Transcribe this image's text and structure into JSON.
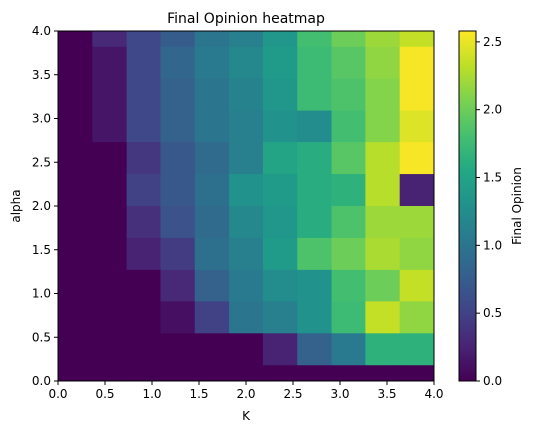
{
  "chart_data": {
    "type": "heatmap",
    "title": "Final Opinion heatmap",
    "xlabel": "K",
    "ylabel": "alpha",
    "colorbar_label": "Final Opinion",
    "colormap": "viridis",
    "xlim": [
      0.0,
      4.0
    ],
    "ylim": [
      0.0,
      4.0
    ],
    "clim": [
      0.0,
      2.58
    ],
    "xticks": [
      "0.0",
      "0.5",
      "1.0",
      "1.5",
      "2.0",
      "2.5",
      "3.0",
      "3.5",
      "4.0"
    ],
    "yticks": [
      "0.0",
      "0.5",
      "1.0",
      "1.5",
      "2.0",
      "2.5",
      "3.0",
      "3.5",
      "4.0"
    ],
    "colorbar_ticks": [
      "0.0",
      "0.5",
      "1.0",
      "1.5",
      "2.0",
      "2.5"
    ],
    "x_centers": [
      0.18,
      0.55,
      0.91,
      1.27,
      1.64,
      2.0,
      2.36,
      2.73,
      3.09,
      3.45,
      3.82
    ],
    "y_centers": [
      4.0,
      3.64,
      3.27,
      2.91,
      2.55,
      2.18,
      1.82,
      1.45,
      1.09,
      0.73,
      0.36,
      0.0
    ],
    "values": [
      [
        0.0,
        0.3,
        0.55,
        0.75,
        1.0,
        1.1,
        1.35,
        1.8,
        2.0,
        2.2,
        2.35
      ],
      [
        0.0,
        0.15,
        0.55,
        0.85,
        1.05,
        1.2,
        1.4,
        1.75,
        1.9,
        2.15,
        2.55
      ],
      [
        0.0,
        0.15,
        0.55,
        0.8,
        1.0,
        1.15,
        1.35,
        1.75,
        1.85,
        2.1,
        2.55
      ],
      [
        0.0,
        0.15,
        0.55,
        0.8,
        1.0,
        1.1,
        1.3,
        1.25,
        1.8,
        2.1,
        2.45
      ],
      [
        0.0,
        0.0,
        0.4,
        0.7,
        0.9,
        1.1,
        1.5,
        1.6,
        1.9,
        2.3,
        2.55
      ],
      [
        0.0,
        0.0,
        0.5,
        0.7,
        0.95,
        1.3,
        1.4,
        1.6,
        1.65,
        2.3,
        0.25
      ],
      [
        0.0,
        0.0,
        0.35,
        0.65,
        0.9,
        1.2,
        1.35,
        1.6,
        1.85,
        2.2,
        2.2
      ],
      [
        0.0,
        0.0,
        0.25,
        0.45,
        0.95,
        1.1,
        1.4,
        1.85,
        2.0,
        2.25,
        2.15
      ],
      [
        0.0,
        0.0,
        0.0,
        0.3,
        0.8,
        1.05,
        1.25,
        1.3,
        1.8,
        2.0,
        2.35
      ],
      [
        0.0,
        0.0,
        0.0,
        0.1,
        0.5,
        1.0,
        1.1,
        1.3,
        1.75,
        2.35,
        2.15
      ],
      [
        0.0,
        0.0,
        0.0,
        0.0,
        0.0,
        0.0,
        0.25,
        0.8,
        1.05,
        1.65,
        1.65
      ],
      [
        0.0,
        0.0,
        0.0,
        0.0,
        0.0,
        0.0,
        0.0,
        0.0,
        0.0,
        0.0,
        0.0
      ]
    ],
    "grid": false,
    "legend": "none"
  }
}
